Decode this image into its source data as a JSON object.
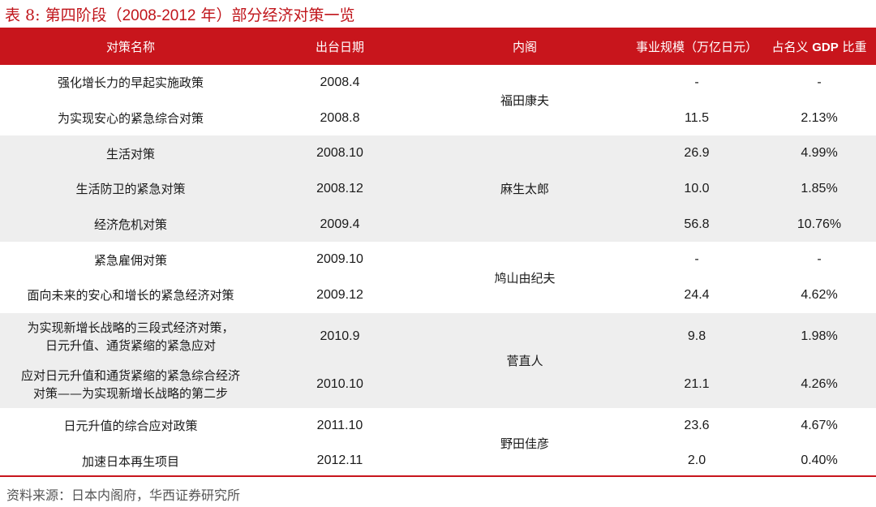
{
  "title": {
    "prefix": "表 8:",
    "text_a": "第四阶段（",
    "range": "2008-2012",
    "text_b": " 年）部分经济对策一览"
  },
  "headers": {
    "measure": "对策名称",
    "date": "出台日期",
    "cabinet": "内阁",
    "scale": "事业规模（万亿日元）",
    "gdp_a": "占名义 ",
    "gdp_latin": "GDP",
    "gdp_b": " 比重"
  },
  "cabinets": [
    "福田康夫",
    "麻生太郎",
    "鸠山由纪夫",
    "菅直人",
    "野田佳彦"
  ],
  "rows": [
    {
      "measure": "强化增长力的早起实施政策",
      "date": "2008.4",
      "scale": "-",
      "gdp": "-"
    },
    {
      "measure": "为实现安心的紧急综合对策",
      "date": "2008.8",
      "scale": "11.5",
      "gdp": "2.13%"
    },
    {
      "measure": "生活对策",
      "date": "2008.10",
      "scale": "26.9",
      "gdp": "4.99%"
    },
    {
      "measure": "生活防卫的紧急对策",
      "date": "2008.12",
      "scale": "10.0",
      "gdp": "1.85%"
    },
    {
      "measure": "经济危机对策",
      "date": "2009.4",
      "scale": "56.8",
      "gdp": "10.76%"
    },
    {
      "measure": "紧急雇佣对策",
      "date": "2009.10",
      "scale": "-",
      "gdp": "-"
    },
    {
      "measure": "面向未来的安心和增长的紧急经济对策",
      "date": "2009.12",
      "scale": "24.4",
      "gdp": "4.62%"
    },
    {
      "measure_line1": "为实现新增长战略的三段式经济对策，",
      "measure_line2": "日元升值、通货紧缩的紧急应对",
      "date": "2010.9",
      "scale": "9.8",
      "gdp": "1.98%"
    },
    {
      "measure_line1": "应对日元升值和通货紧缩的紧急综合经济",
      "measure_line2": "对策——为实现新增长战略的第二步",
      "date": "2010.10",
      "scale": "21.1",
      "gdp": "4.26%"
    },
    {
      "measure": "日元升值的综合应对政策",
      "date": "2011.10",
      "scale": "23.6",
      "gdp": "4.67%"
    },
    {
      "measure": "加速日本再生项目",
      "date": "2012.11",
      "scale": "2.0",
      "gdp": "0.40%"
    }
  ],
  "source": "资料来源：日本内阁府，华西证券研究所",
  "colors": {
    "accent": "#c8151c",
    "stripe": "#eeeeee"
  }
}
